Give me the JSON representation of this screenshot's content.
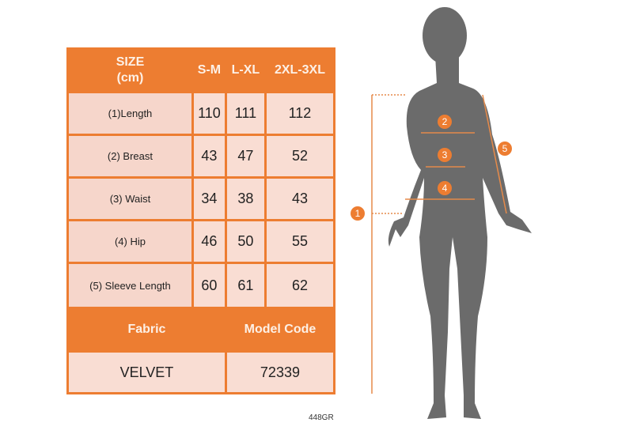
{
  "table": {
    "header": [
      "SIZE\n(cm)",
      "S-M",
      "L-XL",
      "2XL-3XL"
    ],
    "rows": [
      {
        "label": "(1)Length",
        "values": [
          "110",
          "111",
          "112"
        ]
      },
      {
        "label": "(2) Breast",
        "values": [
          "43",
          "47",
          "52"
        ]
      },
      {
        "label": "(3) Waist",
        "values": [
          "34",
          "38",
          "43"
        ]
      },
      {
        "label": "(4) Hip",
        "values": [
          "46",
          "50",
          "55"
        ]
      },
      {
        "label": "(5) Sleeve Length",
        "values": [
          "60",
          "61",
          "62"
        ]
      }
    ],
    "footer_header": [
      "Fabric",
      "Model Code"
    ],
    "footer_values": [
      "VELVET",
      "72339"
    ]
  },
  "code": "448GR",
  "markers": [
    "1",
    "2",
    "3",
    "4",
    "5"
  ],
  "colors": {
    "accent": "#ed7d31",
    "cell": "#f9ddd3",
    "silhouette": "#6b6b6b"
  }
}
